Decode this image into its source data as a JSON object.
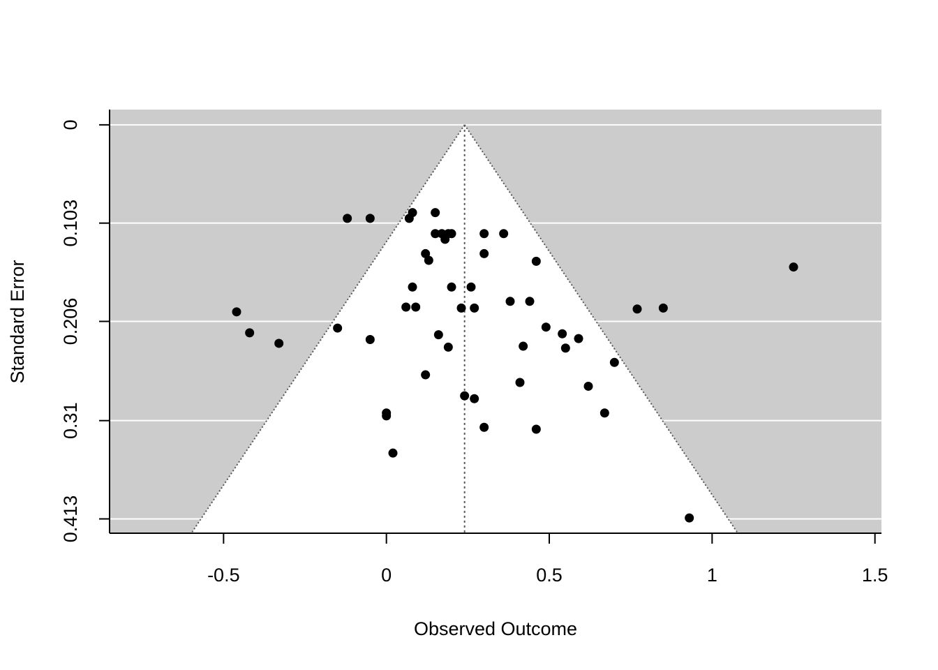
{
  "chart_data": {
    "type": "scatter",
    "subtype": "funnel",
    "title": "",
    "xlabel": "Observed Outcome",
    "ylabel": "Standard Error",
    "xlim": [
      -0.85,
      1.52
    ],
    "ylim": [
      0.428,
      -0.016
    ],
    "y_reversed": true,
    "x_ticks": [
      -0.5,
      0,
      0.5,
      1,
      1.5
    ],
    "x_tick_labels": [
      "-0.5",
      "0",
      "0.5",
      "1",
      "1.5"
    ],
    "y_ticks": [
      0,
      0.103,
      0.206,
      0.31,
      0.413
    ],
    "y_tick_labels": [
      "0",
      "0.103",
      "0.206",
      "0.31",
      "0.413"
    ],
    "grid": true,
    "legend": "none",
    "funnel": {
      "center": 0.24,
      "z": 1.96,
      "se_min": 0,
      "se_max": 0.428
    },
    "colors": {
      "panel_background": "#cccccc",
      "funnel_fill": "#ffffff",
      "gridline": "#ffffff",
      "funnel_line": "#555555",
      "points": "#000000"
    },
    "points": [
      {
        "x": -0.12,
        "y": 0.098
      },
      {
        "x": -0.05,
        "y": 0.098
      },
      {
        "x": 0.07,
        "y": 0.098
      },
      {
        "x": 0.08,
        "y": 0.092
      },
      {
        "x": 0.15,
        "y": 0.092
      },
      {
        "x": 0.15,
        "y": 0.114
      },
      {
        "x": 0.17,
        "y": 0.114
      },
      {
        "x": 0.19,
        "y": 0.114
      },
      {
        "x": 0.2,
        "y": 0.114
      },
      {
        "x": 0.18,
        "y": 0.12
      },
      {
        "x": 0.3,
        "y": 0.114
      },
      {
        "x": 0.36,
        "y": 0.114
      },
      {
        "x": 0.12,
        "y": 0.135
      },
      {
        "x": 0.13,
        "y": 0.142
      },
      {
        "x": 0.3,
        "y": 0.135
      },
      {
        "x": 0.46,
        "y": 0.143
      },
      {
        "x": 1.25,
        "y": 0.149
      },
      {
        "x": 0.08,
        "y": 0.17
      },
      {
        "x": 0.2,
        "y": 0.17
      },
      {
        "x": 0.26,
        "y": 0.17
      },
      {
        "x": 0.06,
        "y": 0.191
      },
      {
        "x": 0.09,
        "y": 0.191
      },
      {
        "x": 0.23,
        "y": 0.192
      },
      {
        "x": 0.27,
        "y": 0.192
      },
      {
        "x": 0.38,
        "y": 0.185
      },
      {
        "x": 0.44,
        "y": 0.185
      },
      {
        "x": 0.77,
        "y": 0.193
      },
      {
        "x": 0.85,
        "y": 0.192
      },
      {
        "x": -0.46,
        "y": 0.196
      },
      {
        "x": -0.42,
        "y": 0.218
      },
      {
        "x": -0.33,
        "y": 0.229
      },
      {
        "x": -0.15,
        "y": 0.213
      },
      {
        "x": -0.05,
        "y": 0.225
      },
      {
        "x": 0.16,
        "y": 0.22
      },
      {
        "x": 0.19,
        "y": 0.233
      },
      {
        "x": 0.49,
        "y": 0.212
      },
      {
        "x": 0.54,
        "y": 0.219
      },
      {
        "x": 0.59,
        "y": 0.224
      },
      {
        "x": 0.42,
        "y": 0.232
      },
      {
        "x": 0.55,
        "y": 0.234
      },
      {
        "x": 0.7,
        "y": 0.249
      },
      {
        "x": 0.12,
        "y": 0.262
      },
      {
        "x": 0.41,
        "y": 0.27
      },
      {
        "x": 0.62,
        "y": 0.274
      },
      {
        "x": 0.24,
        "y": 0.284
      },
      {
        "x": 0.27,
        "y": 0.287
      },
      {
        "x": 0.0,
        "y": 0.302
      },
      {
        "x": 0.0,
        "y": 0.305
      },
      {
        "x": 0.67,
        "y": 0.302
      },
      {
        "x": 0.3,
        "y": 0.317
      },
      {
        "x": 0.46,
        "y": 0.319
      },
      {
        "x": 0.02,
        "y": 0.344
      },
      {
        "x": 0.93,
        "y": 0.412
      }
    ]
  }
}
